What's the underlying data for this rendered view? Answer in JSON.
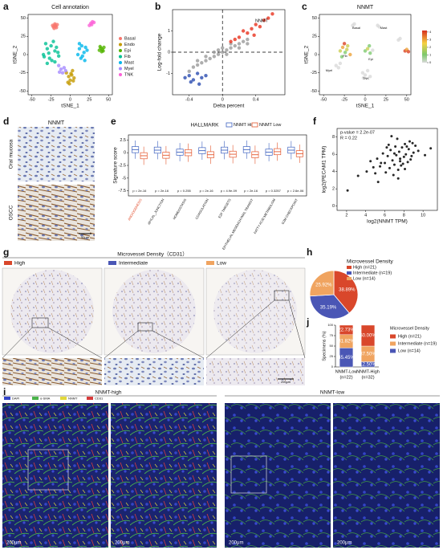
{
  "panel_letters": [
    "a",
    "b",
    "c",
    "d",
    "e",
    "f",
    "g",
    "h",
    "i",
    "j"
  ],
  "chart_data": [
    {
      "type": "scatter",
      "title": "Cell annotation",
      "x_label": "tSNE_1",
      "y_label": "tSNE_2",
      "xlim": [
        -55,
        55
      ],
      "ylim": [
        -55,
        55
      ],
      "xticks": [
        -50,
        -25,
        0,
        25,
        50
      ],
      "yticks": [
        -50,
        -25,
        0,
        25,
        50
      ],
      "legend": true,
      "series": [
        {
          "name": "Basal",
          "color": "#F8766D",
          "x": [
            -22,
            -20,
            -18,
            -21,
            -19,
            -17,
            -23,
            -20
          ],
          "y": [
            38,
            40,
            37,
            36,
            39,
            41,
            40,
            42
          ]
        },
        {
          "name": "Endo",
          "color": "#C49A00",
          "x": [
            -5,
            -2,
            0,
            2,
            5,
            -3,
            1,
            4,
            -1,
            3
          ],
          "y": [
            -25,
            -30,
            -35,
            -28,
            -32,
            -38,
            -26,
            -36,
            -40,
            -22
          ]
        },
        {
          "name": "Epi",
          "color": "#53B400",
          "x": [
            38,
            40,
            42,
            44,
            41,
            39,
            43
          ],
          "y": [
            6,
            9,
            7,
            10,
            4,
            11,
            5
          ]
        },
        {
          "name": "Fib",
          "color": "#00C094",
          "x": [
            -35,
            -30,
            -25,
            -20,
            -15,
            -32,
            -27,
            -22,
            -18,
            -28,
            -24,
            -34,
            -16,
            -30,
            -20
          ],
          "y": [
            0,
            8,
            12,
            5,
            -2,
            15,
            -5,
            18,
            10,
            2,
            -8,
            -3,
            3,
            -12,
            -10
          ]
        },
        {
          "name": "Mast",
          "color": "#00B6EB",
          "x": [
            10,
            12,
            15,
            18,
            20,
            14,
            16,
            22,
            12,
            19
          ],
          "y": [
            0,
            8,
            12,
            3,
            10,
            -5,
            -2,
            6,
            15,
            -8
          ]
        },
        {
          "name": "Myel",
          "color": "#A58AFF",
          "x": [
            -15,
            -12,
            -8,
            -10,
            -14,
            -6
          ],
          "y": [
            -15,
            -20,
            -18,
            -25,
            -24,
            -22
          ]
        },
        {
          "name": "TNK",
          "color": "#FB61D7",
          "x": [
            25,
            27,
            29,
            31,
            28
          ],
          "y": [
            40,
            43,
            45,
            44,
            41
          ]
        }
      ]
    },
    {
      "type": "scatter",
      "x_label": "Delta percent",
      "y_label": "Log-fold change",
      "annotations": [
        "NNMT"
      ],
      "xlim": [
        -0.6,
        0.75
      ],
      "ylim": [
        -2,
        2
      ],
      "xticks": [
        -0.4,
        0,
        0.4
      ],
      "yticks": [
        -1,
        0,
        1
      ],
      "series": [
        {
          "color": "#9a9a9a",
          "x": [
            -0.4,
            -0.35,
            -0.3,
            -0.25,
            -0.2,
            -0.15,
            -0.1,
            -0.05,
            0,
            0.05,
            0.1,
            0.15,
            0.2,
            0.25,
            0.3,
            -0.3,
            -0.2,
            -0.1,
            0,
            0.1,
            0.2,
            0.3,
            -0.05,
            0.05
          ],
          "y": [
            -0.9,
            -0.7,
            -0.6,
            -0.5,
            -0.4,
            -0.3,
            -0.2,
            -0.1,
            0,
            0.1,
            0.2,
            0.3,
            0.4,
            0.5,
            0.6,
            -0.4,
            -0.2,
            0,
            0.2,
            0.4,
            0.2,
            0.4,
            0.1,
            -0.1
          ]
        },
        {
          "color": "#e8321e",
          "x": [
            0.1,
            0.2,
            0.3,
            0.35,
            0.4,
            0.45,
            0.5,
            0.25,
            0.15,
            0.55,
            0.6,
            0.38
          ],
          "y": [
            0.5,
            0.7,
            0.9,
            1.1,
            1.3,
            1.2,
            1.5,
            1.0,
            0.6,
            1.6,
            1.8,
            0.8
          ]
        },
        {
          "color": "#2b4cb0",
          "x": [
            -0.45,
            -0.4,
            -0.35,
            -0.3,
            -0.25,
            -0.2,
            -0.38,
            -0.28
          ],
          "y": [
            -1.2,
            -1.1,
            -1.3,
            -1.0,
            -1.2,
            -1.1,
            -1.4,
            -1.5
          ]
        }
      ]
    },
    {
      "type": "scatter",
      "title": "NNMT",
      "x_label": "tSNE_1",
      "y_label": "tSNE_2",
      "xlim": [
        -55,
        55
      ],
      "ylim": [
        -55,
        55
      ],
      "xticks": [
        -50,
        -25,
        0,
        25,
        50
      ],
      "yticks": [
        -50,
        -25,
        0,
        25,
        50
      ],
      "clim": [
        0,
        4.2
      ],
      "cticks": [
        0,
        1,
        2,
        3,
        4
      ],
      "cluster_labels": [
        "Basal",
        "Mast",
        "Epi",
        "Fib",
        "Myel",
        "TNK"
      ],
      "series": [
        {
          "x": [
            -30,
            -27,
            -24,
            -21,
            -18,
            -28,
            -22,
            -25,
            0,
            3,
            6,
            9,
            5,
            48,
            50,
            52,
            -35,
            -32,
            -30,
            -3,
            0,
            3,
            6,
            -2,
            -15,
            -13,
            15,
            17,
            40,
            42
          ],
          "y": [
            5,
            10,
            3,
            12,
            0,
            -3,
            7,
            15,
            5,
            8,
            2,
            6,
            12,
            5,
            7,
            4,
            -15,
            -18,
            -12,
            -25,
            -28,
            -22,
            -30,
            -32,
            40,
            42,
            40,
            38,
            20,
            22
          ],
          "values": [
            2,
            3,
            1,
            2,
            3,
            1,
            2,
            4,
            1,
            2,
            1,
            0,
            1,
            4,
            3,
            4,
            0,
            0,
            0,
            0,
            0,
            0,
            0,
            0,
            0,
            0,
            0,
            0,
            0,
            0
          ]
        }
      ]
    },
    {
      "type": "box",
      "title": "HALLMARK",
      "y_label": "Signature score",
      "categories": [
        "ANGIOGENESIS",
        "APICAL_JUNCTION",
        "HOMEOSTASIS",
        "COAGULATION",
        "E2F TARGETS",
        "EPITHELIAL MESENCHYMAL TRANSIT",
        "FATTY ACID METABOLISM",
        "G2M CHECKPOINT"
      ],
      "highlight_category": "ANGIOGENESIS",
      "highlight_color": "#e0421f",
      "p_values": [
        "p = 2e-16",
        "p = 2e-16",
        "p = 0.255",
        "p = 2e-16",
        "p = 4.9e-09",
        "p = 2e-16",
        "p = 0.3257",
        "p = 2.6e-06"
      ],
      "ylim": [
        -8.5,
        3.5
      ],
      "yticks": [
        2.5,
        0,
        -2.5,
        -5,
        -7.5
      ],
      "series": [
        {
          "name": "NNMT High",
          "color": "#3e62c0",
          "whislo": [
            -1.2,
            -1.3,
            -1.7,
            -1.4,
            -1.3,
            -1.2,
            -1.7,
            -1.3
          ],
          "q1": [
            0,
            -0.1,
            -0.5,
            -0.2,
            -0.1,
            0,
            -0.5,
            -0.1
          ],
          "med": [
            0.6,
            0.5,
            0.1,
            0.4,
            0.5,
            0.6,
            0.1,
            0.5
          ],
          "q3": [
            1.2,
            1.1,
            0.7,
            1,
            1.1,
            1.2,
            0.7,
            1.1
          ],
          "whishi": [
            2.4,
            2.3,
            1.9,
            2.2,
            2.3,
            2.4,
            1.9,
            2.3
          ]
        },
        {
          "name": "NNMT Low",
          "color": "#e4572e",
          "whislo": [
            -2.4,
            -2.3,
            -1.8,
            -2.2,
            -2.1,
            -2.2,
            -1.6,
            -2
          ],
          "q1": [
            -1.2,
            -1.1,
            -0.6,
            -1,
            -0.9,
            -1,
            -0.4,
            -0.8
          ],
          "med": [
            -0.6,
            -0.5,
            0,
            -0.4,
            -0.3,
            -0.4,
            0.2,
            -0.2
          ],
          "q3": [
            0,
            0.1,
            0.6,
            0.2,
            0.3,
            0.2,
            0.8,
            0.4
          ],
          "whishi": [
            1.2,
            1.3,
            1.8,
            1.4,
            1.5,
            1.4,
            2,
            1.6
          ]
        }
      ]
    },
    {
      "type": "scatter",
      "x_label": "log2(NNMT TPM)",
      "y_label": "log2(PECAM1 TPM)",
      "annotations": [
        "p-value = 2.2e-07",
        "R = 0.22"
      ],
      "xlim": [
        1,
        11.5
      ],
      "ylim": [
        -0.5,
        9
      ],
      "xticks": [
        2,
        4,
        6,
        8,
        10
      ],
      "yticks": [
        0,
        2,
        4,
        6,
        8
      ],
      "series": [
        {
          "color": "#111111",
          "x": [
            3.2,
            4.1,
            4.5,
            5.0,
            5.2,
            5.5,
            5.8,
            6.0,
            6.1,
            6.3,
            6.5,
            6.6,
            6.8,
            7.0,
            7.1,
            7.2,
            7.4,
            7.5,
            7.6,
            7.8,
            7.9,
            8.0,
            8.1,
            8.2,
            8.4,
            8.5,
            8.6,
            8.8,
            9.0,
            9.2,
            9.5,
            10.2,
            4.8,
            5.6,
            6.2,
            6.9,
            7.3,
            7.7,
            8.3,
            8.7,
            5.3,
            6.4,
            7.0,
            7.6,
            8.1,
            8.9,
            2.1,
            10.8,
            6.7,
            7.4
          ],
          "y": [
            3.5,
            4.0,
            5.2,
            3.8,
            5.5,
            4.6,
            6.1,
            5.0,
            3.9,
            5.8,
            4.4,
            6.5,
            5.3,
            4.8,
            6.9,
            5.9,
            4.2,
            6.3,
            5.5,
            6.8,
            4.9,
            5.7,
            7.2,
            6.0,
            5.1,
            6.6,
            7.5,
            5.8,
            6.2,
            7.0,
            6.4,
            5.9,
            4.5,
            5.0,
            6.8,
            3.6,
            7.8,
            4.7,
            6.9,
            5.4,
            2.8,
            7.1,
            6.1,
            5.2,
            4.3,
            7.3,
            1.8,
            6.7,
            8.1,
            3.2
          ]
        }
      ]
    },
    {
      "type": "pie",
      "title": "Microvessel Density",
      "categories": [
        "High (n=21)",
        "Intermediate (n=19)",
        "Low (n=14)"
      ],
      "values": [
        38.89,
        35.19,
        25.92
      ],
      "value_labels": [
        "38.89%",
        "35.19%",
        "25.92%"
      ],
      "colors": [
        "#d9472b",
        "#4a56b5",
        "#f0a460"
      ]
    },
    {
      "type": "stacked_bar",
      "y_label": "Specimens (%)",
      "legend_title": "Microvessel Density",
      "categories": [
        "NNMT-Low",
        "NNMT-High"
      ],
      "category_notes": [
        "(n=22)",
        "(n=32)"
      ],
      "ylim": [
        0,
        100
      ],
      "yticks": [
        0,
        25,
        50,
        75,
        100
      ],
      "series": [
        {
          "name": "High (n=21)",
          "color": "#d9472b",
          "values": [
            22.73,
            50.0
          ],
          "value_labels": [
            "22.73%",
            "50.00%"
          ]
        },
        {
          "name": "Intermediate (n=19)",
          "color": "#f0a460",
          "values": [
            31.82,
            37.5
          ],
          "value_labels": [
            "31.82%",
            "37.50%"
          ]
        },
        {
          "name": "Low (n=14)",
          "color": "#4a56b5",
          "values": [
            45.45,
            12.5
          ],
          "value_labels": [
            "45.45%",
            "12.50%"
          ]
        }
      ]
    }
  ],
  "panels": {
    "d": {
      "title": "NNMT",
      "rows": [
        "Oral mucosa",
        "OSCC"
      ],
      "scale": "50μm"
    },
    "g": {
      "title": "Microvessel Density（CD31）",
      "legend": [
        "High",
        "Intermediate",
        "Low"
      ],
      "scale": "200μm"
    },
    "i": {
      "groups": [
        "NNMT-high",
        "NNMT-low"
      ],
      "legend": [
        "DAPI",
        "α-SMA",
        "NNMT",
        "CD31"
      ],
      "scales": [
        "200μm",
        "200μm",
        "200μm",
        "200μm"
      ]
    }
  }
}
